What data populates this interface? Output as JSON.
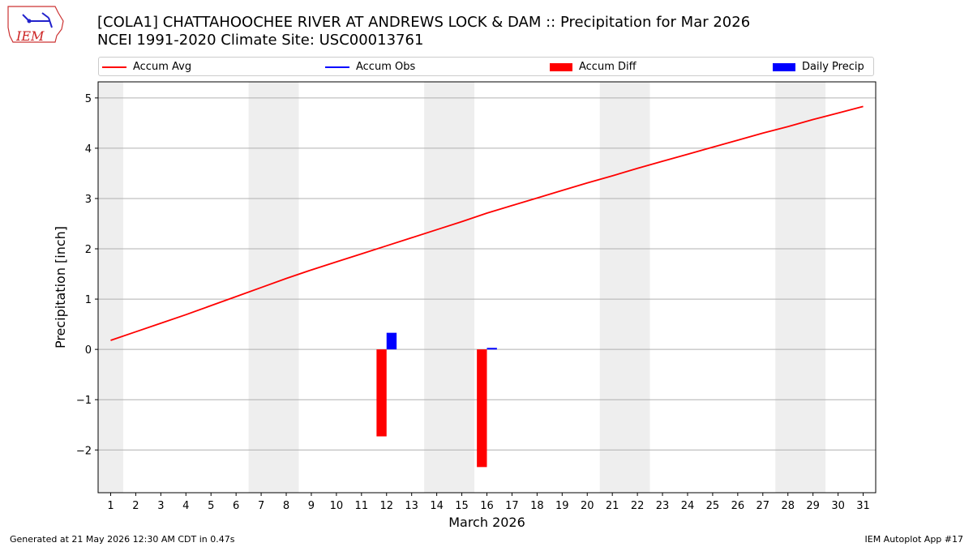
{
  "header": {
    "title_line1": "[COLA1] CHATTAHOOCHEE RIVER  AT ANDREWS LOCK & DAM :: Precipitation for Mar 2026",
    "title_line2": "NCEI 1991-2020 Climate Site: USC00013761",
    "logo_text": "IEM"
  },
  "legend": {
    "items": [
      {
        "label": "Accum Avg",
        "color": "#ff0000",
        "kind": "line"
      },
      {
        "label": "Accum Obs",
        "color": "#0000ff",
        "kind": "line"
      },
      {
        "label": "Accum Diff",
        "color": "#ff0000",
        "kind": "bar"
      },
      {
        "label": "Daily Precip",
        "color": "#0000ff",
        "kind": "bar"
      }
    ]
  },
  "footer": {
    "left": "Generated at 21 May 2026 12:30 AM CDT in 0.47s",
    "right": "IEM Autoplot App #17"
  },
  "chart_data": {
    "type": "bar",
    "title": "[COLA1] CHATTAHOOCHEE RIVER  AT ANDREWS LOCK & DAM :: Precipitation for Mar 2026",
    "subtitle": "NCEI 1991-2020 Climate Site: USC00013761",
    "xlabel": "March 2026",
    "ylabel": "Precipitation [inch]",
    "xlim": [
      0.5,
      31.5
    ],
    "ylim": [
      -2.85,
      5.32
    ],
    "x_ticks": [
      1,
      2,
      3,
      4,
      5,
      6,
      7,
      8,
      9,
      10,
      11,
      12,
      13,
      14,
      15,
      16,
      17,
      18,
      19,
      20,
      21,
      22,
      23,
      24,
      25,
      26,
      27,
      28,
      29,
      30,
      31
    ],
    "y_ticks": [
      -2,
      -1,
      0,
      1,
      2,
      3,
      4,
      5
    ],
    "y_tick_labels": [
      "−2",
      "−1",
      "0",
      "1",
      "2",
      "3",
      "4",
      "5"
    ],
    "grid": true,
    "legend_position": "top",
    "weekend_shading": [
      [
        0.5,
        1.5
      ],
      [
        6.5,
        8.5
      ],
      [
        13.5,
        15.5
      ],
      [
        20.5,
        22.5
      ],
      [
        27.5,
        29.5
      ]
    ],
    "accum_avg": {
      "name": "Accum Avg",
      "color": "#ff0000",
      "x": [
        1,
        2,
        3,
        4,
        5,
        6,
        7,
        8,
        9,
        10,
        11,
        12,
        13,
        14,
        15,
        16,
        17,
        18,
        19,
        20,
        21,
        22,
        23,
        24,
        25,
        26,
        27,
        28,
        29,
        30,
        31
      ],
      "y": [
        0.18,
        0.35,
        0.52,
        0.69,
        0.87,
        1.05,
        1.23,
        1.41,
        1.58,
        1.74,
        1.9,
        2.06,
        2.22,
        2.38,
        2.54,
        2.71,
        2.86,
        3.01,
        3.16,
        3.31,
        3.45,
        3.6,
        3.74,
        3.88,
        4.02,
        4.16,
        4.3,
        4.43,
        4.57,
        4.7,
        4.83
      ]
    },
    "accum_obs": {
      "name": "Accum Obs",
      "color": "#0000ff",
      "x": [],
      "y": []
    },
    "accum_diff": {
      "name": "Accum Diff",
      "color": "#ff0000",
      "x": [
        12,
        16
      ],
      "y": [
        -1.73,
        -2.34
      ]
    },
    "daily_precip": {
      "name": "Daily Precip",
      "color": "#0000ff",
      "x": [
        12,
        16
      ],
      "y": [
        0.33,
        0.03
      ]
    }
  }
}
